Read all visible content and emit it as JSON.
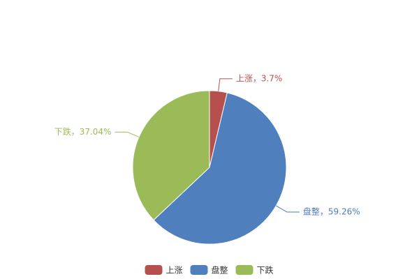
{
  "chart_data": {
    "type": "pie",
    "categories": [
      "上涨",
      "盘整",
      "下跌"
    ],
    "values": [
      3.7,
      59.26,
      37.04
    ],
    "value_labels": [
      "上涨，3.7%",
      "盘整，59.26%",
      "下跌，37.04%"
    ],
    "colors": [
      "#b5504f",
      "#4f7fbd",
      "#9bbb59"
    ],
    "legend": "bottom"
  }
}
